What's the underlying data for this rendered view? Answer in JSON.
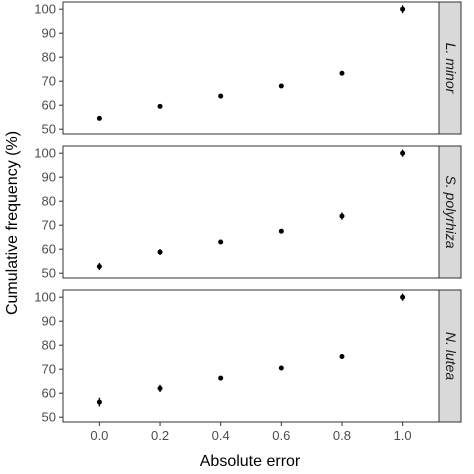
{
  "chart_data": {
    "type": "scatter",
    "xlabel": "Absolute error",
    "ylabel": "Cumulative frequency (%)",
    "x_ticks": [
      "0.0",
      "0.2",
      "0.4",
      "0.6",
      "0.8",
      "1.0"
    ],
    "xlim": [
      -0.12,
      1.12
    ],
    "error_bars": true,
    "facets": [
      {
        "strip": "L. minor",
        "ylim": [
          48,
          103
        ],
        "y_ticks": [
          "50",
          "60",
          "70",
          "80",
          "90",
          "100"
        ],
        "points": [
          {
            "x": 0.0,
            "y": 54.5,
            "err": 0.8
          },
          {
            "x": 0.2,
            "y": 59.5,
            "err": 0.8
          },
          {
            "x": 0.4,
            "y": 63.8,
            "err": 0.6
          },
          {
            "x": 0.6,
            "y": 68.0,
            "err": 0.6
          },
          {
            "x": 0.8,
            "y": 73.3,
            "err": 0.6
          },
          {
            "x": 1.0,
            "y": 100.0,
            "err": 1.6
          }
        ]
      },
      {
        "strip": "S. polyrhiza",
        "ylim": [
          48,
          103
        ],
        "y_ticks": [
          "50",
          "60",
          "70",
          "80",
          "90",
          "100"
        ],
        "points": [
          {
            "x": 0.0,
            "y": 52.8,
            "err": 1.5
          },
          {
            "x": 0.2,
            "y": 58.8,
            "err": 1.2
          },
          {
            "x": 0.4,
            "y": 63.0,
            "err": 0.6
          },
          {
            "x": 0.6,
            "y": 67.5,
            "err": 0.6
          },
          {
            "x": 0.8,
            "y": 73.8,
            "err": 1.5
          },
          {
            "x": 1.0,
            "y": 100.0,
            "err": 1.5
          }
        ]
      },
      {
        "strip": "N. lutea",
        "ylim": [
          48,
          103
        ],
        "y_ticks": [
          "50",
          "60",
          "70",
          "80",
          "90",
          "100"
        ],
        "points": [
          {
            "x": 0.0,
            "y": 56.3,
            "err": 1.8
          },
          {
            "x": 0.2,
            "y": 62.0,
            "err": 1.5
          },
          {
            "x": 0.4,
            "y": 66.3,
            "err": 0.8
          },
          {
            "x": 0.6,
            "y": 70.5,
            "err": 0.8
          },
          {
            "x": 0.8,
            "y": 75.3,
            "err": 1.0
          },
          {
            "x": 1.0,
            "y": 100.0,
            "err": 1.5
          }
        ]
      }
    ]
  }
}
